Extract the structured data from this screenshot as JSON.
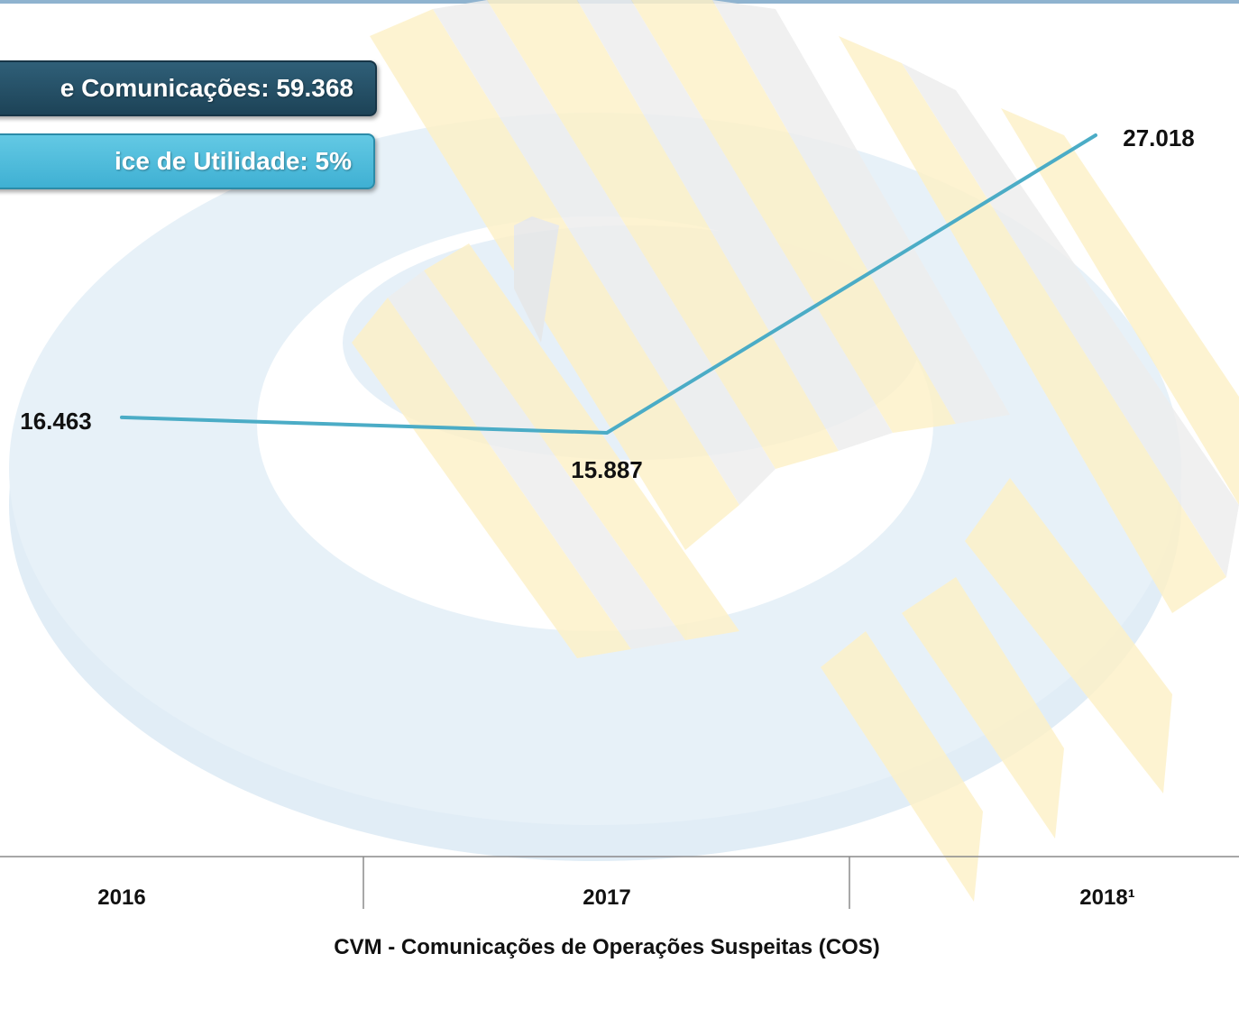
{
  "header": {
    "total_box": "e Comunicações: 59.368",
    "index_box": "ice de Utilidade: 5%"
  },
  "chart_data": {
    "type": "line",
    "categories": [
      "2016",
      "2017",
      "2018¹"
    ],
    "series": [
      {
        "values": [
          16463,
          15887,
          27018
        ]
      }
    ],
    "value_labels": [
      "16.463",
      "15.887",
      "27.018"
    ],
    "xlabel": "CVM - Comunicações de Operações Suspeitas (COS)",
    "ylabel": "",
    "ylim": [
      0,
      30000
    ],
    "grid": false,
    "line_color": "#4bacc6"
  }
}
